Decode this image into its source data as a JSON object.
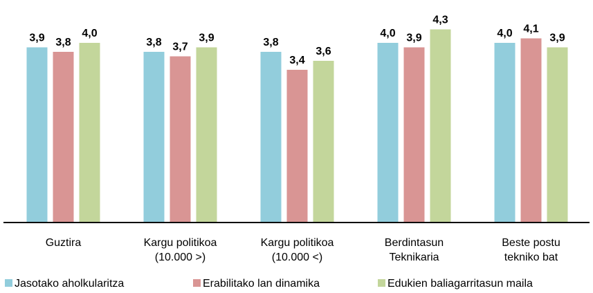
{
  "chart_data": {
    "type": "bar",
    "categories": [
      [
        "Guztira"
      ],
      [
        "Kargu politikoa",
        "(10.000 >)"
      ],
      [
        "Kargu politikoa",
        "(10.000 <)"
      ],
      [
        "Berdintasun",
        "Teknikaria"
      ],
      [
        "Beste postu",
        "tekniko bat"
      ]
    ],
    "series": [
      {
        "name": "Jasotako aholkularitza",
        "color": "#92cddc",
        "values": [
          3.9,
          3.8,
          3.8,
          4.0,
          4.0
        ],
        "value_labels": [
          "3,9",
          "3,8",
          "3,8",
          "4,0",
          "4,0"
        ]
      },
      {
        "name": "Erabilitako lan dinamika",
        "color": "#d99594",
        "values": [
          3.8,
          3.7,
          3.4,
          3.9,
          4.1
        ],
        "value_labels": [
          "3,8",
          "3,7",
          "3,4",
          "3,9",
          "4,1"
        ]
      },
      {
        "name": "Edukien baliagarritasun maila",
        "color": "#c3d69b",
        "values": [
          4.0,
          3.9,
          3.6,
          4.3,
          3.9
        ],
        "value_labels": [
          "4,0",
          "3,9",
          "3,6",
          "4,3",
          "3,9"
        ]
      }
    ],
    "ylim": [
      0,
      4.5
    ]
  }
}
